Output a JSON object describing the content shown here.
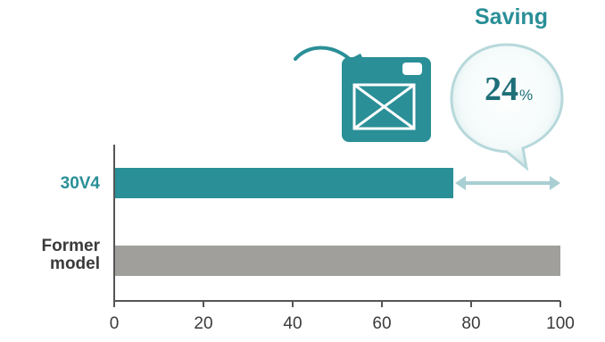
{
  "chart_data": {
    "type": "bar",
    "orientation": "horizontal",
    "categories": [
      "30V4",
      "Former model"
    ],
    "category_lines": [
      [
        "30V4"
      ],
      [
        "Former",
        "model"
      ]
    ],
    "values": [
      76,
      100
    ],
    "x_ticks": [
      0,
      20,
      40,
      60,
      80,
      100
    ],
    "xlim": [
      0,
      100
    ],
    "xlabel": "",
    "ylabel": "",
    "grid": false,
    "annotation": {
      "title": "Saving",
      "value": "24",
      "unit": "%"
    },
    "icon": "fuel-can-icon"
  },
  "colors": {
    "teal": "#2a8f97",
    "gray": "#a09f9b",
    "axis": "#555555",
    "arrow": "#a9cfd2",
    "bubble_text": "#1f6f79"
  }
}
